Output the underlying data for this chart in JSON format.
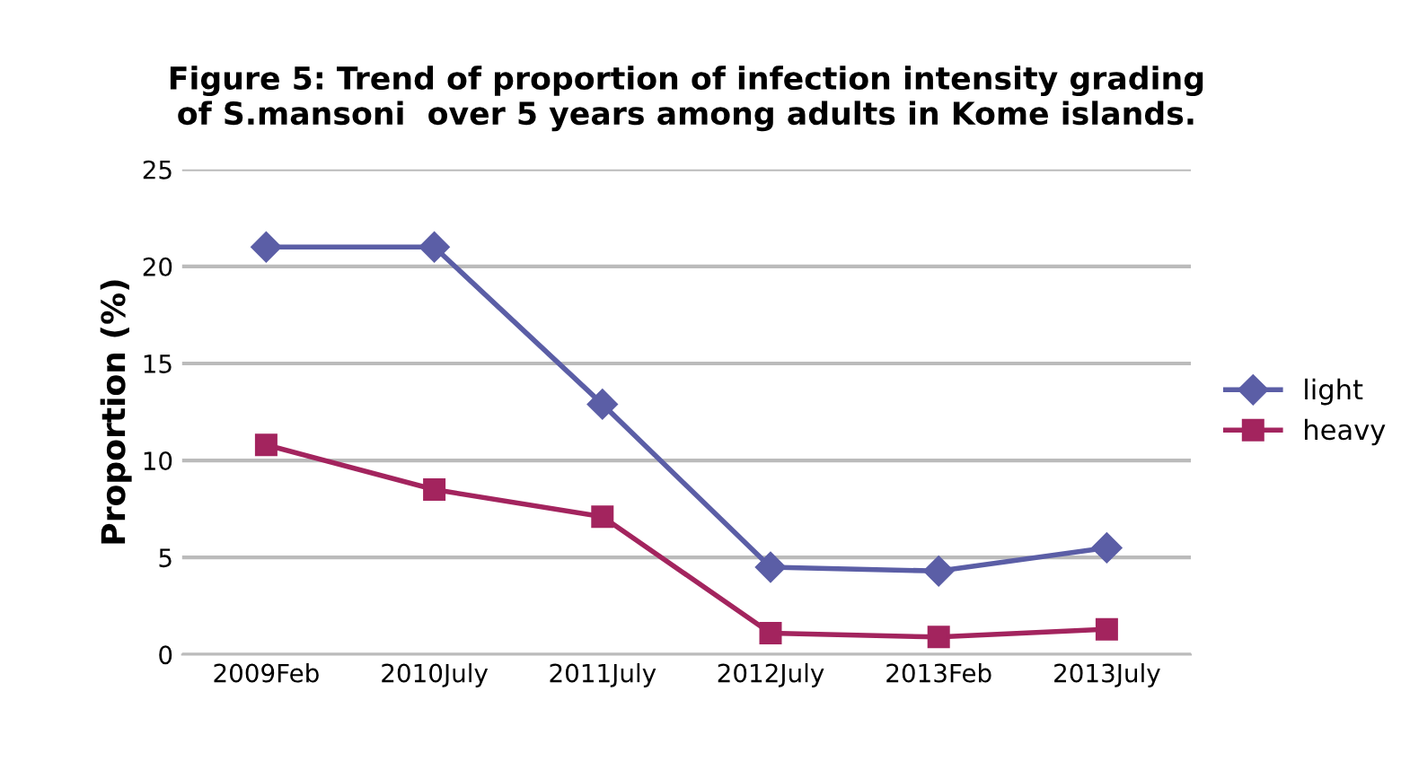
{
  "chart_data": {
    "type": "line",
    "title": "Figure 5: Trend of proportion of infection intensity grading\nof S.mansoni  over 5 years among adults in Kome islands.",
    "ylabel": "Proportion (%)",
    "categories": [
      "2009Feb",
      "2010July",
      "2011July",
      "2012July",
      "2013Feb",
      "2013July"
    ],
    "series": [
      {
        "name": "light",
        "color": "#5b5ea6",
        "marker": "diamond",
        "values": [
          21.0,
          21.0,
          12.9,
          4.5,
          4.3,
          5.5
        ]
      },
      {
        "name": "heavy",
        "color": "#a3245e",
        "marker": "square",
        "values": [
          10.8,
          8.5,
          7.1,
          1.1,
          0.9,
          1.3
        ]
      }
    ],
    "ylim": [
      0,
      25
    ],
    "yticks": [
      0,
      5,
      10,
      15,
      20,
      25
    ],
    "grid": "y",
    "legend": "right"
  }
}
